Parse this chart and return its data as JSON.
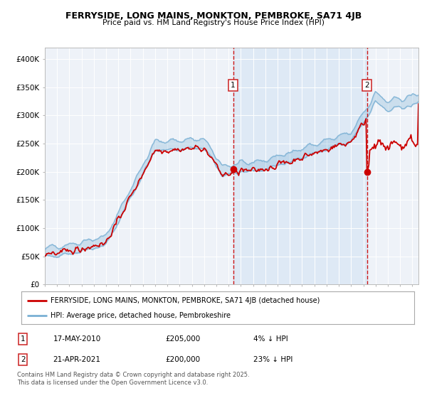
{
  "title_line1": "FERRYSIDE, LONG MAINS, MONKTON, PEMBROKE, SA71 4JB",
  "title_line2": "Price paid vs. HM Land Registry's House Price Index (HPI)",
  "background_color": "#ffffff",
  "plot_bg_color": "#eef2f8",
  "shaded_region_color": "#dce8f5",
  "ylabel_values": [
    "£0",
    "£50K",
    "£100K",
    "£150K",
    "£200K",
    "£250K",
    "£300K",
    "£350K",
    "£400K"
  ],
  "ytick_values": [
    0,
    50000,
    100000,
    150000,
    200000,
    250000,
    300000,
    350000,
    400000
  ],
  "ylim": [
    0,
    420000
  ],
  "hpi_color": "#7ab0d4",
  "hpi_fill_alpha": 0.3,
  "price_color": "#cc0000",
  "sale1_date": 2010.37,
  "sale1_price": 205000,
  "sale1_label": "1",
  "sale2_date": 2021.3,
  "sale2_price": 200000,
  "sale2_label": "2",
  "legend_line1": "FERRYSIDE, LONG MAINS, MONKTON, PEMBROKE, SA71 4JB (detached house)",
  "legend_line2": "HPI: Average price, detached house, Pembrokeshire",
  "annotation1_date": "17-MAY-2010",
  "annotation1_price": "£205,000",
  "annotation1_pct": "4% ↓ HPI",
  "annotation2_date": "21-APR-2021",
  "annotation2_price": "£200,000",
  "annotation2_pct": "23% ↓ HPI",
  "footer_text": "Contains HM Land Registry data © Crown copyright and database right 2025.\nThis data is licensed under the Open Government Licence v3.0.",
  "xmin": 1995,
  "xmax": 2025.5
}
